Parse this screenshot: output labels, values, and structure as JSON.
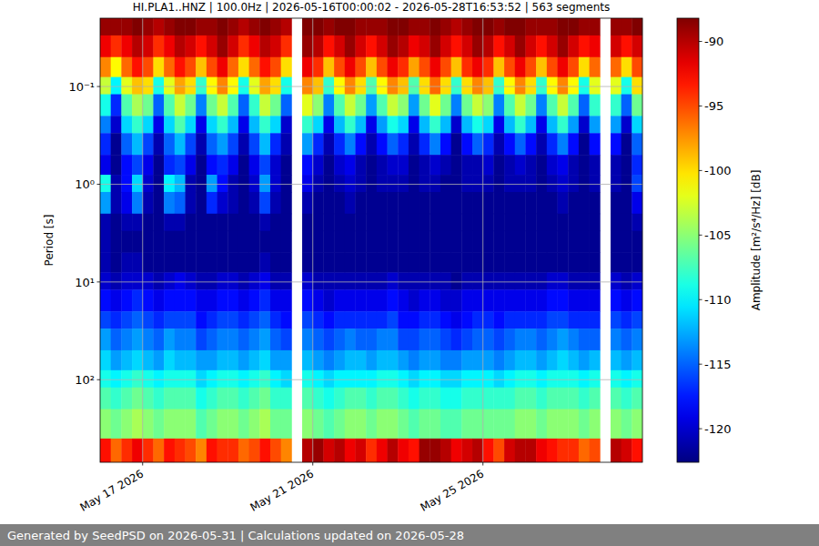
{
  "chart_data": {
    "type": "heatmap",
    "title": "HI.PLA1..HNZ | 100.0Hz | 2026-05-16T00:00:02 - 2026-05-28T16:53:52 | 563 segments",
    "y_label": "Period [s]",
    "footer": "Generated by SeedPSD on 2026-05-31 | Calculations updated on 2026-05-28",
    "log": "y",
    "grid": true,
    "xlim": [
      "2026-05-16T00:00",
      "2026-05-28T18:00"
    ],
    "xticks": [
      {
        "value": "2026-05-17",
        "label": "May 17 2026"
      },
      {
        "value": "2026-05-21",
        "label": "May 21 2026"
      },
      {
        "value": "2026-05-25",
        "label": "May 25 2026"
      }
    ],
    "ylim": [
      0.02,
      700
    ],
    "yticks": [
      {
        "value": 0.1,
        "label": "10⁻¹"
      },
      {
        "value": 1,
        "label": "10⁰"
      },
      {
        "value": 10,
        "label": "10¹"
      },
      {
        "value": 100,
        "label": "10²"
      }
    ],
    "colorbar": {
      "label": "Amplitude [m²/s⁴/Hz] [dB]",
      "range": [
        -122.6,
        -88.2
      ],
      "ticks": [
        -120,
        -115,
        -110,
        -105,
        -100,
        -95,
        -90
      ]
    },
    "x_edges": [
      "2026-05-16T00:00",
      "2026-05-16T06:00",
      "2026-05-16T12:00",
      "2026-05-16T18:00",
      "2026-05-17T00:00",
      "2026-05-17T06:00",
      "2026-05-17T12:00",
      "2026-05-17T18:00",
      "2026-05-18T00:00",
      "2026-05-18T06:00",
      "2026-05-18T12:00",
      "2026-05-18T18:00",
      "2026-05-19T00:00",
      "2026-05-19T06:00",
      "2026-05-19T12:00",
      "2026-05-19T18:00",
      "2026-05-20T00:00",
      "2026-05-20T06:00",
      "2026-05-20T12:00",
      "2026-05-20T18:00",
      "2026-05-21T00:00",
      "2026-05-21T06:00",
      "2026-05-21T12:00",
      "2026-05-21T18:00",
      "2026-05-22T00:00",
      "2026-05-22T06:00",
      "2026-05-22T12:00",
      "2026-05-22T18:00",
      "2026-05-23T00:00",
      "2026-05-23T06:00",
      "2026-05-23T12:00",
      "2026-05-23T18:00",
      "2026-05-24T00:00",
      "2026-05-24T06:00",
      "2026-05-24T12:00",
      "2026-05-24T18:00",
      "2026-05-25T00:00",
      "2026-05-25T06:00",
      "2026-05-25T12:00",
      "2026-05-25T18:00",
      "2026-05-26T00:00",
      "2026-05-26T06:00",
      "2026-05-26T12:00",
      "2026-05-26T18:00",
      "2026-05-27T00:00",
      "2026-05-27T06:00",
      "2026-05-27T12:00",
      "2026-05-27T18:00",
      "2026-05-28T00:00",
      "2026-05-28T06:00",
      "2026-05-28T12:00",
      "2026-05-28T18:00"
    ],
    "y_edges": [
      0.02,
      0.03,
      0.05,
      0.08,
      0.12,
      0.2,
      0.3,
      0.5,
      0.8,
      1.2,
      2,
      3,
      5,
      8,
      12,
      20,
      30,
      50,
      80,
      120,
      200,
      400,
      700
    ],
    "values": [
      [
        -89,
        -89,
        -89,
        -88,
        -89,
        -90,
        -89,
        -88,
        -88,
        -89,
        -89,
        -88,
        -89,
        -90,
        -89,
        -88,
        -89,
        -90,
        null,
        -88,
        -88,
        -89,
        -88,
        -88,
        -89,
        -89,
        -89,
        -88,
        -88,
        -89,
        -89,
        -88,
        -89,
        -90,
        -89,
        -88,
        -88,
        -89,
        -88,
        -88,
        -89,
        -89,
        -89,
        -88,
        -88,
        -89,
        -89,
        null,
        -89,
        -89,
        -88
      ],
      [
        -92,
        -94,
        -92,
        -90,
        -91,
        -94,
        -92,
        -90,
        -91,
        -93,
        -91,
        -89,
        -91,
        -94,
        -92,
        -90,
        -91,
        -94,
        null,
        -89,
        -90,
        -93,
        -91,
        -89,
        -91,
        -93,
        -91,
        -89,
        -90,
        -92,
        -91,
        -89,
        -91,
        -93,
        -91,
        -89,
        -90,
        -93,
        -91,
        -89,
        -91,
        -93,
        -91,
        -89,
        -91,
        -93,
        -92,
        null,
        -91,
        -93,
        -91
      ],
      [
        -97,
        -101,
        -96,
        -93,
        -95,
        -100,
        -96,
        -93,
        -95,
        -99,
        -95,
        -92,
        -96,
        -100,
        -96,
        -93,
        -95,
        -100,
        null,
        -92,
        -94,
        -99,
        -95,
        -92,
        -95,
        -99,
        -95,
        -92,
        -94,
        -98,
        -95,
        -92,
        -95,
        -99,
        -94,
        -92,
        -94,
        -99,
        -95,
        -92,
        -95,
        -99,
        -95,
        -92,
        -95,
        -100,
        -96,
        null,
        -96,
        -100,
        -95
      ],
      [
        -103,
        -110,
        -102,
        -99,
        -100,
        -109,
        -102,
        -98,
        -100,
        -108,
        -101,
        -97,
        -101,
        -109,
        -102,
        -98,
        -100,
        -109,
        null,
        -97,
        -99,
        -108,
        -101,
        -97,
        -100,
        -107,
        -101,
        -97,
        -99,
        -107,
        -100,
        -96,
        -100,
        -108,
        -100,
        -97,
        -99,
        -108,
        -101,
        -97,
        -100,
        -108,
        -101,
        -97,
        -101,
        -109,
        -102,
        null,
        -102,
        -109,
        -100
      ],
      [
        -109,
        -117,
        -107,
        -104,
        -106,
        -115,
        -107,
        -103,
        -106,
        -114,
        -106,
        -103,
        -107,
        -115,
        -108,
        -103,
        -106,
        -115,
        null,
        -102,
        -105,
        -114,
        -107,
        -103,
        -106,
        -113,
        -107,
        -103,
        -105,
        -113,
        -106,
        -102,
        -106,
        -114,
        -106,
        -103,
        -105,
        -114,
        -107,
        -103,
        -106,
        -114,
        -107,
        -103,
        -107,
        -115,
        -108,
        null,
        -108,
        -115,
        -106
      ],
      [
        -114,
        -120,
        -111,
        -108,
        -111,
        -119,
        -111,
        -107,
        -111,
        -119,
        -111,
        -108,
        -112,
        -119,
        -112,
        -108,
        -111,
        -120,
        null,
        -108,
        -111,
        -119,
        -112,
        -108,
        -112,
        -119,
        -113,
        -109,
        -111,
        -119,
        -112,
        -108,
        -112,
        -120,
        -112,
        -109,
        -111,
        -119,
        -112,
        -108,
        -112,
        -119,
        -112,
        -108,
        -113,
        -120,
        -113,
        null,
        -113,
        -120,
        -111
      ],
      [
        -117,
        -122,
        -115,
        -112,
        -116,
        -121,
        -115,
        -112,
        -116,
        -121,
        -115,
        -113,
        -116,
        -121,
        -116,
        -112,
        -117,
        -121,
        null,
        -113,
        -117,
        -121,
        -117,
        -114,
        -118,
        -121,
        -118,
        -115,
        -117,
        -121,
        -117,
        -114,
        -118,
        -122,
        -118,
        -115,
        -117,
        -121,
        -118,
        -115,
        -118,
        -121,
        -117,
        -114,
        -118,
        -122,
        -118,
        null,
        -118,
        -122,
        -115
      ],
      [
        -119,
        -122,
        -118,
        -116,
        -119,
        -122,
        -117,
        -116,
        -119,
        -122,
        -118,
        -117,
        -119,
        -122,
        -119,
        -116,
        -120,
        -122,
        null,
        -118,
        -120,
        -122,
        -120,
        -119,
        -121,
        -122,
        -121,
        -120,
        -120,
        -122,
        -121,
        -120,
        -121,
        -122,
        -121,
        -121,
        -120,
        -122,
        -121,
        -120,
        -121,
        -122,
        -120,
        -119,
        -121,
        -122,
        -121,
        null,
        -121,
        -122,
        -117
      ],
      [
        -109,
        -121,
        -118,
        -111,
        -120,
        -122,
        -110,
        -112,
        -121,
        -122,
        -113,
        -118,
        -121,
        -122,
        -120,
        -113,
        -120,
        -122,
        null,
        -119,
        -121,
        -122,
        -121,
        -120,
        -121,
        -122,
        -121,
        -121,
        -121,
        -122,
        -121,
        -121,
        -122,
        -122,
        -121,
        -121,
        -121,
        -122,
        -121,
        -121,
        -121,
        -122,
        -121,
        -120,
        -121,
        -122,
        -121,
        null,
        -121,
        -122,
        -116
      ],
      [
        -113,
        -121,
        -119,
        -114,
        -121,
        -122,
        -114,
        -115,
        -121,
        -122,
        -117,
        -120,
        -121,
        -122,
        -121,
        -116,
        -121,
        -122,
        null,
        -121,
        -122,
        -122,
        -122,
        -121,
        -122,
        -122,
        -122,
        -122,
        -122,
        -122,
        -122,
        -122,
        -122,
        -122,
        -122,
        -122,
        -122,
        -122,
        -122,
        -122,
        -122,
        -122,
        -122,
        -121,
        -122,
        -122,
        -122,
        null,
        -122,
        -122,
        -119
      ],
      [
        -121,
        -122,
        -121,
        -121,
        -122,
        -122,
        -121,
        -121,
        -122,
        -122,
        -122,
        -122,
        -122,
        -122,
        -122,
        -121,
        -122,
        -122,
        null,
        -122,
        -122,
        -122,
        -122,
        -122,
        -122,
        -122,
        -122,
        -122,
        -122,
        -122,
        -122,
        -122,
        -122,
        -122,
        -122,
        -122,
        -122,
        -122,
        -122,
        -122,
        -122,
        -122,
        -122,
        -122,
        -122,
        -122,
        -122,
        null,
        -122,
        -122,
        -121
      ],
      [
        -121,
        -122,
        -122,
        -122,
        -122,
        -122,
        -122,
        -122,
        -122,
        -122,
        -122,
        -122,
        -122,
        -122,
        -122,
        -122,
        -122,
        -122,
        null,
        -122,
        -122,
        -122,
        -122,
        -122,
        -122,
        -122,
        -122,
        -122,
        -122,
        -122,
        -122,
        -122,
        -122,
        -122,
        -122,
        -122,
        -122,
        -122,
        -122,
        -122,
        -122,
        -122,
        -122,
        -122,
        -122,
        -122,
        -122,
        null,
        -122,
        -122,
        -122
      ],
      [
        -121,
        -122,
        -121,
        -121,
        -122,
        -122,
        -122,
        -122,
        -122,
        -122,
        -122,
        -122,
        -122,
        -122,
        -122,
        -121,
        -122,
        -122,
        null,
        -122,
        -122,
        -122,
        -122,
        -122,
        -122,
        -122,
        -122,
        -122,
        -122,
        -122,
        -122,
        -122,
        -122,
        -122,
        -122,
        -122,
        -122,
        -122,
        -122,
        -122,
        -122,
        -122,
        -122,
        -122,
        -122,
        -122,
        -122,
        null,
        -122,
        -122,
        -122
      ],
      [
        -120,
        -121,
        -120,
        -120,
        -120,
        -121,
        -120,
        -119,
        -120,
        -121,
        -121,
        -120,
        -120,
        -121,
        -120,
        -119,
        -121,
        -121,
        null,
        -120,
        -121,
        -121,
        -121,
        -121,
        -121,
        -121,
        -121,
        -120,
        -121,
        -121,
        -121,
        -121,
        -121,
        -122,
        -121,
        -121,
        -121,
        -121,
        -121,
        -121,
        -121,
        -121,
        -120,
        -120,
        -121,
        -121,
        -121,
        null,
        -120,
        -121,
        -120
      ],
      [
        -118,
        -119,
        -118,
        -117,
        -118,
        -119,
        -118,
        -118,
        -118,
        -119,
        -119,
        -118,
        -118,
        -119,
        -118,
        -117,
        -119,
        -119,
        null,
        -118,
        -119,
        -120,
        -119,
        -119,
        -119,
        -119,
        -119,
        -118,
        -119,
        -120,
        -119,
        -119,
        -120,
        -120,
        -119,
        -119,
        -119,
        -119,
        -119,
        -119,
        -119,
        -119,
        -118,
        -118,
        -119,
        -119,
        -119,
        null,
        -118,
        -119,
        -118
      ],
      [
        -116,
        -117,
        -116,
        -115,
        -116,
        -117,
        -116,
        -116,
        -116,
        -118,
        -117,
        -116,
        -116,
        -117,
        -116,
        -115,
        -117,
        -118,
        null,
        -116,
        -117,
        -118,
        -117,
        -117,
        -117,
        -117,
        -117,
        -116,
        -118,
        -118,
        -117,
        -117,
        -118,
        -119,
        -118,
        -117,
        -117,
        -118,
        -117,
        -117,
        -117,
        -117,
        -116,
        -116,
        -117,
        -117,
        -117,
        null,
        -116,
        -117,
        -116
      ],
      [
        -113,
        -115,
        -114,
        -113,
        -114,
        -115,
        -113,
        -114,
        -114,
        -116,
        -115,
        -114,
        -114,
        -115,
        -114,
        -113,
        -115,
        -116,
        null,
        -114,
        -115,
        -116,
        -115,
        -114,
        -115,
        -115,
        -114,
        -114,
        -116,
        -116,
        -115,
        -115,
        -116,
        -117,
        -116,
        -115,
        -115,
        -116,
        -115,
        -114,
        -114,
        -115,
        -114,
        -113,
        -114,
        -115,
        -115,
        null,
        -114,
        -115,
        -114
      ],
      [
        -111,
        -113,
        -112,
        -111,
        -112,
        -113,
        -111,
        -112,
        -112,
        -113,
        -113,
        -112,
        -112,
        -113,
        -112,
        -111,
        -113,
        -113,
        null,
        -112,
        -113,
        -114,
        -113,
        -112,
        -112,
        -113,
        -112,
        -112,
        -113,
        -114,
        -113,
        -113,
        -114,
        -114,
        -113,
        -113,
        -113,
        -114,
        -113,
        -112,
        -112,
        -113,
        -112,
        -111,
        -112,
        -113,
        -112,
        null,
        -112,
        -113,
        -112
      ],
      [
        -109,
        -110,
        -109,
        -108,
        -109,
        -110,
        -109,
        -109,
        -109,
        -111,
        -110,
        -109,
        -109,
        -110,
        -109,
        -108,
        -110,
        -111,
        null,
        -109,
        -110,
        -111,
        -110,
        -110,
        -110,
        -110,
        -109,
        -109,
        -110,
        -111,
        -110,
        -110,
        -111,
        -111,
        -110,
        -110,
        -110,
        -111,
        -110,
        -109,
        -109,
        -110,
        -109,
        -109,
        -109,
        -110,
        -109,
        null,
        -109,
        -110,
        -109
      ],
      [
        -107,
        -108,
        -107,
        -106,
        -107,
        -108,
        -107,
        -107,
        -107,
        -109,
        -108,
        -107,
        -107,
        -108,
        -107,
        -106,
        -108,
        -108,
        null,
        -107,
        -108,
        -109,
        -108,
        -107,
        -107,
        -108,
        -107,
        -107,
        -108,
        -109,
        -108,
        -108,
        -109,
        -109,
        -108,
        -108,
        -108,
        -108,
        -108,
        -107,
        -107,
        -108,
        -107,
        -107,
        -107,
        -108,
        -107,
        null,
        -107,
        -108,
        -107
      ],
      [
        -105,
        -106,
        -105,
        -104,
        -105,
        -106,
        -105,
        -105,
        -105,
        -107,
        -106,
        -105,
        -105,
        -106,
        -105,
        -104,
        -106,
        -106,
        null,
        -105,
        -106,
        -107,
        -106,
        -105,
        -105,
        -106,
        -105,
        -105,
        -106,
        -107,
        -106,
        -106,
        -107,
        -107,
        -106,
        -106,
        -106,
        -106,
        -106,
        -105,
        -105,
        -106,
        -105,
        -105,
        -105,
        -106,
        -105,
        null,
        -105,
        -106,
        -105
      ],
      [
        -93,
        -96,
        -94,
        -92,
        -94,
        -96,
        -93,
        -94,
        -95,
        -97,
        -93,
        -94,
        -94,
        -96,
        -95,
        -93,
        -95,
        -97,
        null,
        -90,
        -89,
        -91,
        -90,
        -92,
        -91,
        -94,
        -92,
        -90,
        -92,
        -93,
        -89,
        -89,
        -90,
        -92,
        -91,
        -90,
        -93,
        -95,
        -91,
        -90,
        -90,
        -92,
        -93,
        -94,
        -94,
        -96,
        -95,
        null,
        -90,
        -91,
        -93
      ]
    ]
  }
}
